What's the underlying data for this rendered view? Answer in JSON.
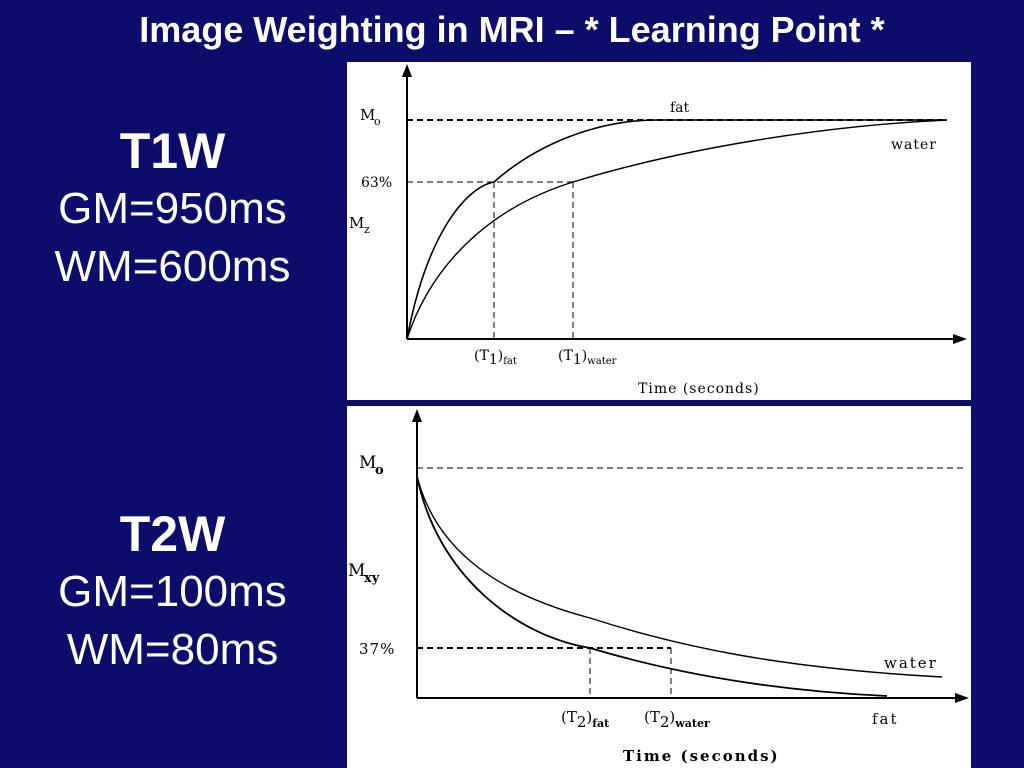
{
  "slide": {
    "title": "Image Weighting in MRI – * Learning Point *"
  },
  "t1": {
    "heading": "T1W",
    "gm": "GM=950ms",
    "wm": "WM=600ms",
    "plot": {
      "m0": "M",
      "m0_sub": "o",
      "level": "63%",
      "mz": "M",
      "mz_sub": "z",
      "series_fat": "fat",
      "series_water": "water",
      "tick_fat_main": "(T",
      "tick_fat_num": "1",
      "tick_fat_close": ")",
      "tick_fat_sub": "fat",
      "tick_water_main": "(T",
      "tick_water_num": "1",
      "tick_water_close": ")",
      "tick_water_sub": "water",
      "xlabel": "Time (seconds)"
    }
  },
  "t2": {
    "heading": "T2W",
    "gm": "GM=100ms",
    "wm": "WM=80ms",
    "plot": {
      "m0": "M",
      "m0_sub": "o",
      "mxy": "M",
      "mxy_sub": "xy",
      "level": "37%",
      "series_fat": "fat",
      "series_water": "water",
      "tick_fat_main": "(T",
      "tick_fat_num": "2",
      "tick_fat_close": ")",
      "tick_fat_sub": "fat",
      "tick_water_main": "(T",
      "tick_water_num": "2",
      "tick_water_close": ")",
      "tick_water_sub": "water",
      "xlabel": "Time (seconds)"
    }
  },
  "colors": {
    "background": "#0c0c6a",
    "text": "#ffffff",
    "panel": "#ffffff",
    "ink": "#000000"
  }
}
